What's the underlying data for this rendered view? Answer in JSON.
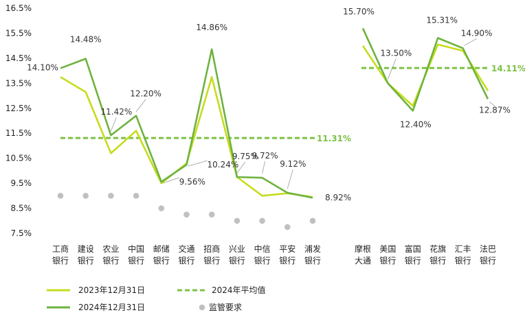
{
  "chart_data": {
    "type": "line",
    "y_tick_labels": [
      "16.5%",
      "15.5%",
      "14.5%",
      "13.5%",
      "12.5%",
      "11.5%",
      "10.5%",
      "9.5%",
      "8.5%",
      "7.5%"
    ],
    "ylim": [
      7.5,
      16.5
    ],
    "grid": false,
    "groups": [
      {
        "categories": [
          [
            "工商",
            "银行"
          ],
          [
            "建设",
            "银行"
          ],
          [
            "农业",
            "银行"
          ],
          [
            "中国",
            "银行"
          ],
          [
            "邮储",
            "银行"
          ],
          [
            "交通",
            "银行"
          ],
          [
            "招商",
            "银行"
          ],
          [
            "兴业",
            "银行"
          ],
          [
            "中信",
            "银行"
          ],
          [
            "平安",
            "银行"
          ],
          [
            "浦发",
            "银行"
          ]
        ],
        "series_2023": [
          13.75,
          13.15,
          10.7,
          11.6,
          9.5,
          10.3,
          13.75,
          9.75,
          9.0,
          9.1,
          8.95
        ],
        "series_2024": [
          14.1,
          14.48,
          11.42,
          12.2,
          9.56,
          10.24,
          14.86,
          9.75,
          9.72,
          9.12,
          8.92
        ],
        "regulatory": [
          9.0,
          9.0,
          9.0,
          9.0,
          8.5,
          8.25,
          8.25,
          8.0,
          8.0,
          7.75,
          8.0
        ],
        "average_2024": 11.31,
        "average_label": "11.31%",
        "labels_2024": [
          "14.10%",
          "14.48%",
          "11.42%",
          "12.20%",
          "9.56%",
          "10.24%",
          "14.86%",
          "9.75%",
          "9.72%",
          "9.12%",
          "8.92%"
        ]
      },
      {
        "categories": [
          [
            "摩根",
            "大通"
          ],
          [
            "美国",
            "银行"
          ],
          [
            "富国",
            "银行"
          ],
          [
            "花旗",
            "银行"
          ],
          [
            "汇丰",
            "银行"
          ],
          [
            "法巴",
            "银行"
          ]
        ],
        "series_2023": [
          15.0,
          13.5,
          12.6,
          15.05,
          14.8,
          13.2
        ],
        "series_2024": [
          15.7,
          13.5,
          12.4,
          15.31,
          14.9,
          12.87
        ],
        "average_2024": 14.11,
        "average_label": "14.11%",
        "labels_2024": [
          "15.70%",
          "13.50%",
          "12.40%",
          "15.31%",
          "14.90%",
          "12.87%"
        ]
      }
    ],
    "legend": [
      {
        "key": "s2023",
        "label": "2023年12月31日",
        "color": "#c6dc1c",
        "style": "line"
      },
      {
        "key": "avg",
        "label": "2024年平均值",
        "color": "#7cc242",
        "style": "dashed"
      },
      {
        "key": "s2024",
        "label": "2024年12月31日",
        "color": "#6db33f",
        "style": "line"
      },
      {
        "key": "reg",
        "label": "监管要求",
        "color": "#c0c0c0",
        "style": "dot"
      }
    ],
    "legend_position": "bottom-left",
    "colors": {
      "series_2023": "#c6dc1c",
      "series_2024": "#6db33f",
      "average": "#7cc242",
      "regulatory": "#c0c0c0",
      "leader": "#999999"
    }
  }
}
